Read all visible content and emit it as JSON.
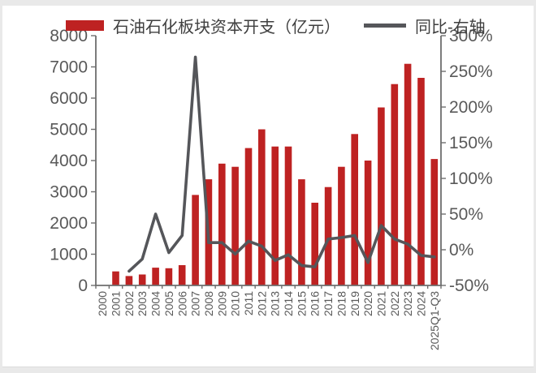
{
  "legend": {
    "items": [
      {
        "label": "石油石化板块资本开支（亿元）",
        "swatch": "bar"
      },
      {
        "label": "同比-右轴",
        "swatch": "line"
      }
    ]
  },
  "colors": {
    "bar": "#be2222",
    "line": "#55565a",
    "axis_line": "#6e6e6e",
    "tick_text": "#595959",
    "legend_text": "#3f3f3f",
    "frame": "#e9e9e9"
  },
  "chart_data": {
    "type": "bar",
    "subtype": "bar+line combo, dual axis",
    "categories": [
      "2000",
      "2001",
      "2002",
      "2003",
      "2004",
      "2005",
      "2006",
      "2007",
      "2008",
      "2009",
      "2010",
      "2011",
      "2012",
      "2013",
      "2014",
      "2015",
      "2016",
      "2017",
      "2018",
      "2019",
      "2020",
      "2021",
      "2022",
      "2023",
      "2024",
      "2025Q1-Q3"
    ],
    "series": [
      {
        "name": "石油石化板块资本开支（亿元）",
        "type": "bar",
        "axis": "left",
        "values": [
          0,
          450,
          300,
          350,
          570,
          550,
          650,
          2900,
          3400,
          3900,
          3800,
          4400,
          5000,
          4450,
          4450,
          3400,
          2650,
          3150,
          3800,
          4850,
          4000,
          5700,
          6450,
          7100,
          6650,
          4050
        ]
      },
      {
        "name": "同比-右轴",
        "type": "line",
        "axis": "right",
        "values": [
          null,
          null,
          -30,
          -13,
          50,
          -4,
          20,
          270,
          10,
          10,
          -6,
          12,
          5,
          -15,
          -7,
          -22,
          -24,
          15,
          17,
          20,
          -18,
          34,
          15,
          8,
          -8,
          -10
        ]
      }
    ],
    "left_axis": {
      "min": 0,
      "max": 8000,
      "tick_step": 1000,
      "tick_labels": [
        "8000",
        "7000",
        "6000",
        "5000",
        "4000",
        "3000",
        "2000",
        "1000",
        "0"
      ]
    },
    "right_axis": {
      "min": -50,
      "max": 300,
      "tick_step": 50,
      "tick_labels": [
        "300%",
        "250%",
        "200%",
        "150%",
        "100%",
        "50%",
        "0%",
        "-50%"
      ]
    },
    "grid": false,
    "legend_position": "top"
  }
}
